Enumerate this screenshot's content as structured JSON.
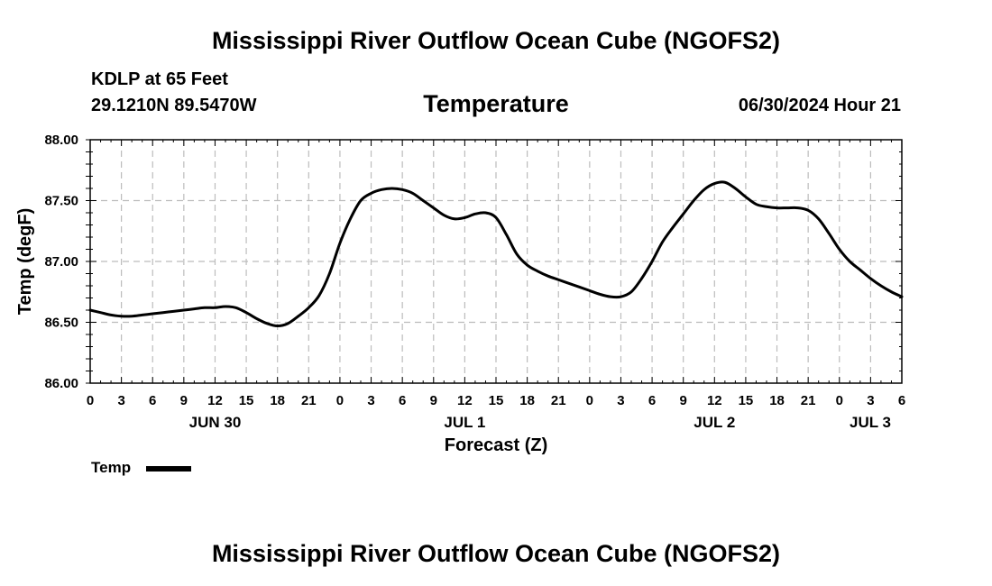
{
  "header": {
    "title": "Mississippi River Outflow Ocean Cube (NGOFS2)",
    "station": "KDLP at 65 Feet",
    "coordinates": "29.1210N  89.5470W",
    "variable": "Temperature",
    "datetime": "06/30/2024 Hour 21"
  },
  "footer": {
    "title": "Mississippi River Outflow Ocean Cube (NGOFS2)"
  },
  "legend": {
    "label": "Temp"
  },
  "chart_data": {
    "type": "line",
    "title": "Temperature",
    "xlabel": "Forecast (Z)",
    "ylabel": "Temp (degF)",
    "ylim": [
      86.0,
      88.0
    ],
    "xlim": [
      0,
      78
    ],
    "yticks": [
      86.0,
      86.5,
      87.0,
      87.5,
      88.0
    ],
    "ytick_labels": [
      "86.00",
      "86.50",
      "87.00",
      "87.50",
      "88.00"
    ],
    "xticks": [
      0,
      3,
      6,
      9,
      12,
      15,
      18,
      21,
      24,
      27,
      30,
      33,
      36,
      39,
      42,
      45,
      48,
      51,
      54,
      57,
      60,
      63,
      66,
      69,
      72,
      75,
      78
    ],
    "xtick_labels": [
      "0",
      "3",
      "6",
      "9",
      "12",
      "15",
      "18",
      "21",
      "0",
      "3",
      "6",
      "9",
      "12",
      "15",
      "18",
      "21",
      "0",
      "3",
      "6",
      "9",
      "12",
      "15",
      "18",
      "21",
      "0",
      "3",
      "6"
    ],
    "date_labels": [
      {
        "label": "JUN 30",
        "x": 12
      },
      {
        "label": "JUL 1",
        "x": 36
      },
      {
        "label": "JUL 2",
        "x": 60
      },
      {
        "label": "JUL 3",
        "x": 78
      }
    ],
    "grid": true,
    "legend_position": "bottom-left",
    "series": [
      {
        "name": "Temp",
        "color": "#000000",
        "x": [
          0,
          1,
          2,
          3,
          4,
          5,
          6,
          7,
          8,
          9,
          10,
          11,
          12,
          13,
          14,
          15,
          16,
          17,
          18,
          19,
          20,
          21,
          22,
          23,
          24,
          25,
          26,
          27,
          28,
          29,
          30,
          31,
          32,
          33,
          34,
          35,
          36,
          37,
          38,
          39,
          40,
          41,
          42,
          43,
          44,
          45,
          46,
          47,
          48,
          49,
          50,
          51,
          52,
          53,
          54,
          55,
          56,
          57,
          58,
          59,
          60,
          61,
          62,
          63,
          64,
          65,
          66,
          67,
          68,
          69,
          70,
          71,
          72,
          73,
          74,
          75,
          76,
          77,
          78
        ],
        "values": [
          86.6,
          86.58,
          86.56,
          86.55,
          86.55,
          86.56,
          86.57,
          86.58,
          86.59,
          86.6,
          86.61,
          86.62,
          86.62,
          86.63,
          86.62,
          86.58,
          86.53,
          86.49,
          86.47,
          86.49,
          86.55,
          86.62,
          86.72,
          86.9,
          87.15,
          87.35,
          87.5,
          87.56,
          87.59,
          87.6,
          87.59,
          87.56,
          87.5,
          87.44,
          87.38,
          87.35,
          87.36,
          87.39,
          87.4,
          87.36,
          87.22,
          87.06,
          86.97,
          86.92,
          86.88,
          86.85,
          86.82,
          86.79,
          86.76,
          86.73,
          86.71,
          86.71,
          86.75,
          86.86,
          87.0,
          87.16,
          87.28,
          87.39,
          87.5,
          87.59,
          87.64,
          87.65,
          87.6,
          87.53,
          87.47,
          87.45,
          87.44,
          87.44,
          87.44,
          87.42,
          87.35,
          87.23,
          87.1,
          87.0,
          86.93,
          86.86,
          86.8,
          86.75,
          86.71
        ]
      }
    ]
  }
}
